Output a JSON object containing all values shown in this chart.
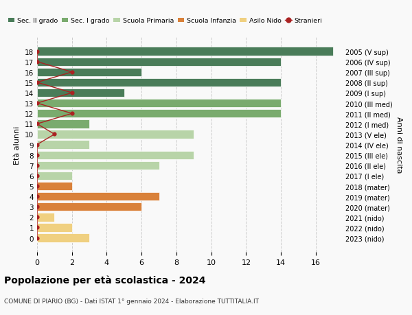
{
  "ages": [
    18,
    17,
    16,
    15,
    14,
    13,
    12,
    11,
    10,
    9,
    8,
    7,
    6,
    5,
    4,
    3,
    2,
    1,
    0
  ],
  "years": [
    "2005 (V sup)",
    "2006 (IV sup)",
    "2007 (III sup)",
    "2008 (II sup)",
    "2009 (I sup)",
    "2010 (III med)",
    "2011 (II med)",
    "2012 (I med)",
    "2013 (V ele)",
    "2014 (IV ele)",
    "2015 (III ele)",
    "2016 (II ele)",
    "2017 (I ele)",
    "2018 (mater)",
    "2019 (mater)",
    "2020 (mater)",
    "2021 (nido)",
    "2022 (nido)",
    "2023 (nido)"
  ],
  "bar_values": [
    17,
    14,
    6,
    14,
    5,
    14,
    14,
    3,
    9,
    3,
    9,
    7,
    2,
    2,
    7,
    6,
    1,
    2,
    3
  ],
  "bar_colors": [
    "#4a7c59",
    "#4a7c59",
    "#4a7c59",
    "#4a7c59",
    "#4a7c59",
    "#7aab6e",
    "#7aab6e",
    "#7aab6e",
    "#b8d4a8",
    "#b8d4a8",
    "#b8d4a8",
    "#b8d4a8",
    "#b8d4a8",
    "#d9813a",
    "#d9813a",
    "#d9813a",
    "#f0d080",
    "#f0d080",
    "#f0d080"
  ],
  "stranieri_x": [
    0,
    0,
    2,
    0,
    2,
    0,
    2,
    0,
    1,
    0,
    0,
    0,
    0,
    0,
    0,
    0,
    0,
    0,
    0
  ],
  "legend_labels": [
    "Sec. II grado",
    "Sec. I grado",
    "Scuola Primaria",
    "Scuola Infanzia",
    "Asilo Nido",
    "Stranieri"
  ],
  "legend_colors": [
    "#4a7c59",
    "#7aab6e",
    "#b8d4a8",
    "#d9813a",
    "#f0d080",
    "#aa2222"
  ],
  "title": "Popolazione per età scolastica - 2024",
  "subtitle": "COMUNE DI PIARIO (BG) - Dati ISTAT 1° gennaio 2024 - Elaborazione TUTTITALIA.IT",
  "ylabel_left": "Età alunni",
  "ylabel_right": "Anni di nascita",
  "xlim": [
    0,
    17.5
  ],
  "background_color": "#f9f9f9",
  "stranieri_color": "#aa2222",
  "grid_color": "#cccccc"
}
